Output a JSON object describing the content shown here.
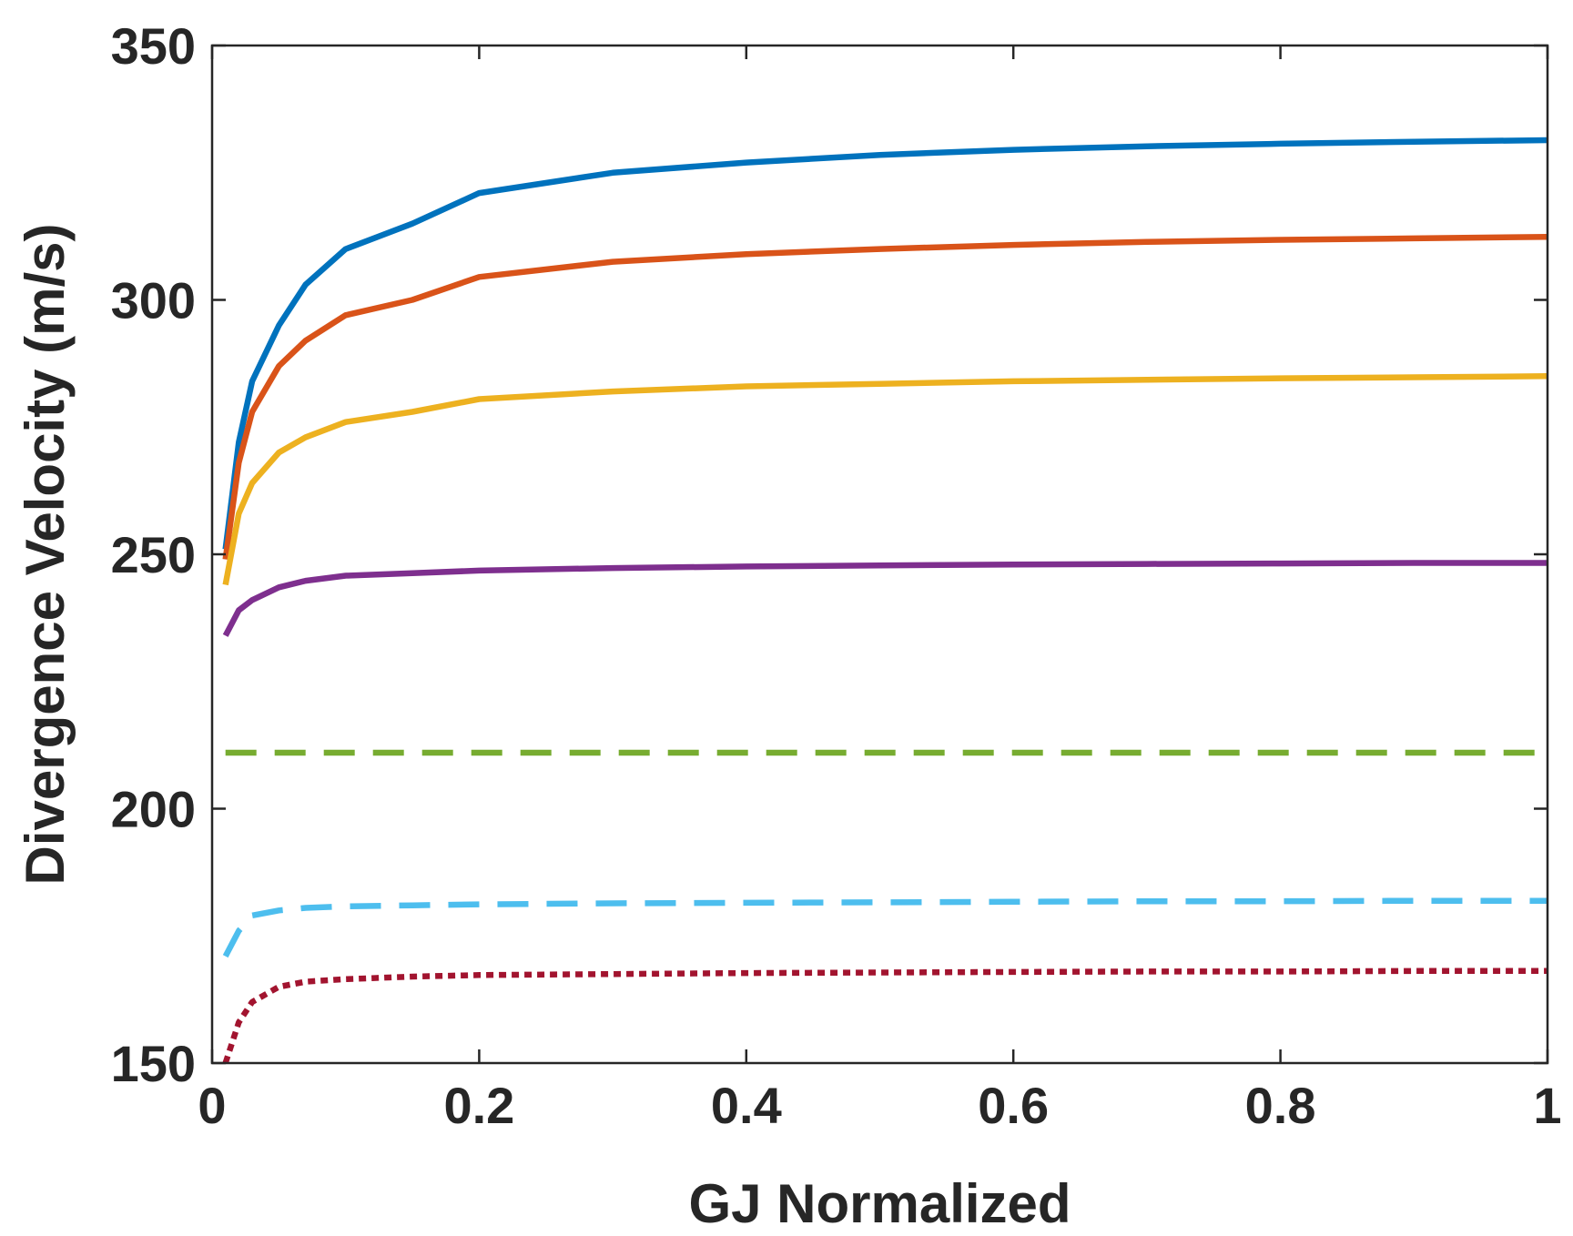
{
  "chart_data": {
    "type": "line",
    "title": "",
    "xlabel": "GJ Normalized",
    "ylabel": "Divergence Velocity (m/s)",
    "xlim": [
      0,
      1
    ],
    "ylim": [
      150,
      350
    ],
    "x_ticks": [
      0,
      0.2,
      0.4,
      0.6,
      0.8,
      1
    ],
    "x_tick_labels": [
      "0",
      "0.2",
      "0.4",
      "0.6",
      "0.8",
      "1"
    ],
    "y_ticks": [
      150,
      200,
      250,
      300,
      350
    ],
    "y_tick_labels": [
      "150",
      "200",
      "250",
      "300",
      "350"
    ],
    "grid": false,
    "legend": "none",
    "x": [
      0.01,
      0.02,
      0.03,
      0.05,
      0.07,
      0.1,
      0.15,
      0.2,
      0.3,
      0.4,
      0.5,
      0.6,
      0.7,
      0.8,
      0.9,
      1.0
    ],
    "series": [
      {
        "name": "series-1",
        "color": "#0072BD",
        "style": "solid",
        "values": [
          251,
          272,
          284,
          295,
          303,
          310,
          315,
          321,
          325,
          327,
          328.5,
          329.5,
          330.2,
          330.7,
          331.1,
          331.4
        ]
      },
      {
        "name": "series-2",
        "color": "#D95319",
        "style": "solid",
        "values": [
          249,
          268,
          278,
          287,
          292,
          297,
          300,
          304.5,
          307.5,
          309,
          310,
          310.8,
          311.4,
          311.8,
          312.1,
          312.4
        ]
      },
      {
        "name": "series-3",
        "color": "#EDB120",
        "style": "solid",
        "values": [
          244,
          258,
          264,
          270,
          273,
          276,
          278,
          280.5,
          282,
          283,
          283.5,
          284,
          284.3,
          284.6,
          284.8,
          285
        ]
      },
      {
        "name": "series-4",
        "color": "#7E2F8E",
        "style": "solid",
        "values": [
          234,
          239,
          241,
          243.5,
          244.8,
          245.8,
          246.3,
          246.8,
          247.3,
          247.6,
          247.8,
          248,
          248.1,
          248.2,
          248.3,
          248.3
        ]
      },
      {
        "name": "series-5",
        "color": "#77AC30",
        "style": "dashed",
        "values": [
          211,
          211,
          211,
          211,
          211,
          211,
          211,
          211,
          211,
          211,
          211,
          211,
          211,
          211,
          211,
          211
        ]
      },
      {
        "name": "series-6",
        "color": "#4DBEEE",
        "style": "dashed",
        "values": [
          171,
          176,
          179,
          180,
          180.5,
          180.8,
          181,
          181.2,
          181.4,
          181.5,
          181.6,
          181.7,
          181.8,
          181.8,
          181.9,
          181.9
        ]
      },
      {
        "name": "series-7",
        "color": "#A2142F",
        "style": "dotted",
        "values": [
          150,
          158,
          162,
          165,
          166,
          166.5,
          167,
          167.3,
          167.5,
          167.7,
          167.8,
          167.9,
          168,
          168,
          168.1,
          168.1
        ]
      }
    ]
  }
}
